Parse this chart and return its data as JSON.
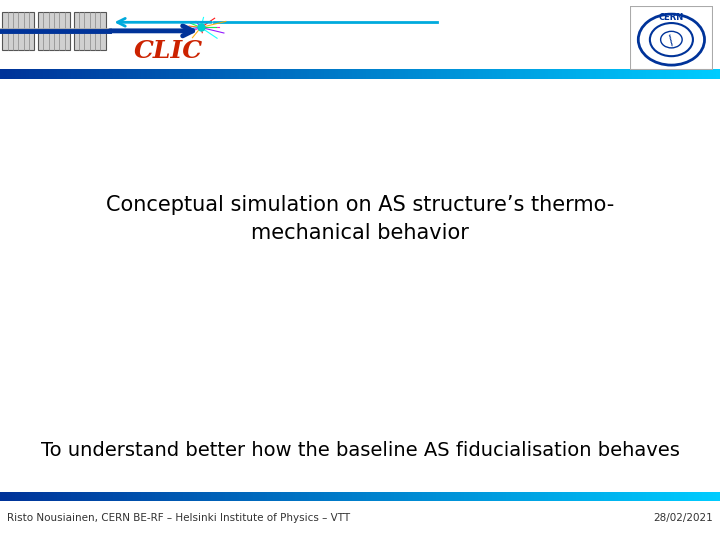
{
  "title_text": "Conceptual simulation on AS structure’s thermo-\nmechanical behavior",
  "subtitle_text": "To understand better how the baseline AS fiducialisation behaves",
  "footer_left": "Risto Nousiainen, CERN BE-RF – Helsinki Institute of Physics – VTT",
  "footer_right": "28/02/2021",
  "bg_color": "#ffffff",
  "title_color": "#000000",
  "subtitle_color": "#000000",
  "footer_color": "#333333",
  "header_bar_color_left": "#003399",
  "header_bar_color_right": "#00ccff",
  "footer_bar_color_left": "#003399",
  "footer_bar_color_right": "#00ccff",
  "title_fontsize": 15,
  "subtitle_fontsize": 14,
  "footer_fontsize": 7.5
}
